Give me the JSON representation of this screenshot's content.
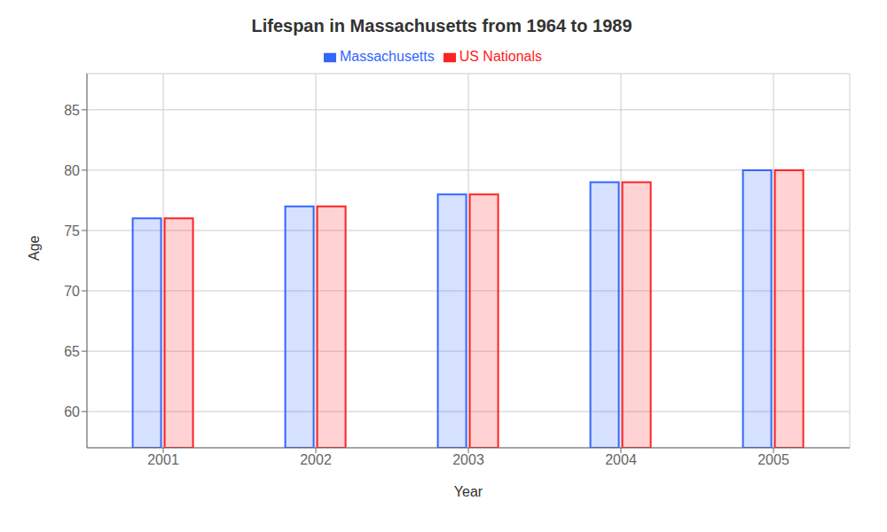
{
  "chart_data": {
    "type": "bar",
    "title": "Lifespan in Massachusetts from 1964 to 1989",
    "xlabel": "Year",
    "ylabel": "Age",
    "categories": [
      "2001",
      "2002",
      "2003",
      "2004",
      "2005"
    ],
    "series": [
      {
        "name": "Massachusetts",
        "color": "#3366ff",
        "values": [
          76,
          77,
          78,
          79,
          80
        ]
      },
      {
        "name": "US Nationals",
        "color": "#ff2222",
        "values": [
          76,
          77,
          78,
          79,
          80
        ]
      }
    ],
    "ylim": [
      57,
      88
    ],
    "yticks": [
      60,
      65,
      70,
      75,
      80,
      85
    ],
    "grid": true,
    "legend": "top"
  }
}
